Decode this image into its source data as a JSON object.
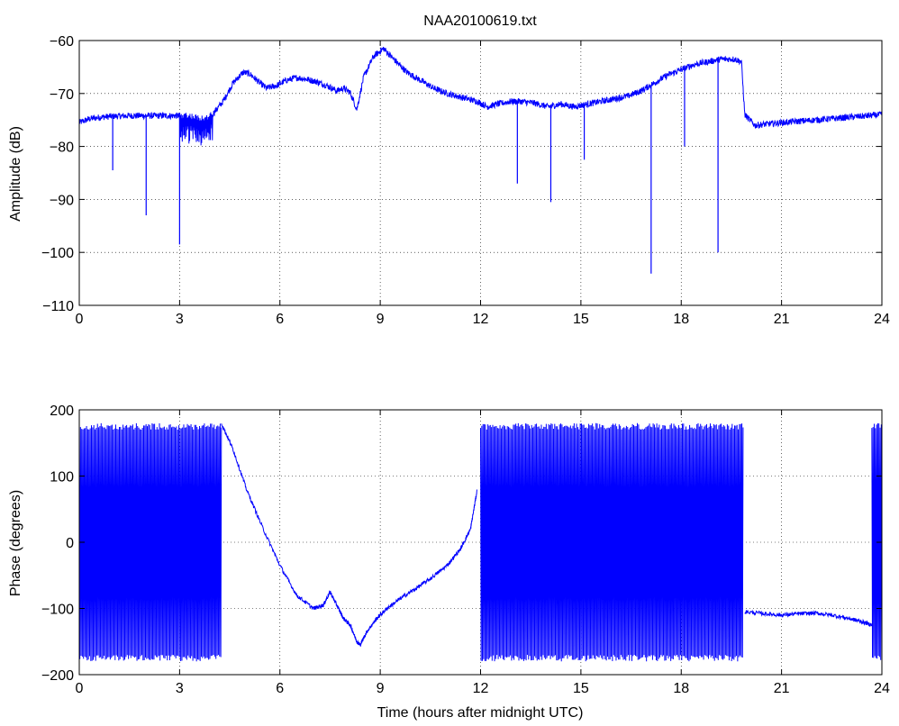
{
  "chart_data": [
    {
      "type": "line",
      "title": "NAA20100619.txt",
      "xlabel": "",
      "ylabel": "Amplitude (dB)",
      "xlim": [
        0,
        24
      ],
      "ylim": [
        -110,
        -60
      ],
      "xticks": [
        0,
        3,
        6,
        9,
        12,
        15,
        18,
        21,
        24
      ],
      "yticks": [
        -60,
        -70,
        -80,
        -90,
        -100,
        -110
      ],
      "xtick_labels": [
        "0",
        "3",
        "6",
        "9",
        "12",
        "15",
        "18",
        "21",
        "24"
      ],
      "ytick_labels": [
        "−60",
        "−70",
        "−80",
        "−90",
        "−100",
        "−110"
      ],
      "grid": true,
      "line_color": "#0000ff",
      "series": [
        {
          "x": [
            0,
            0.3,
            0.6,
            1.0,
            1.5,
            2.0,
            2.5,
            3.0,
            3.2,
            3.5,
            3.8,
            4.0,
            4.3,
            4.6,
            4.9,
            5.1,
            5.4,
            5.6,
            5.9,
            6.2,
            6.5,
            6.8,
            7.1,
            7.4,
            7.7,
            7.9,
            8.1,
            8.3,
            8.5,
            8.8,
            9.1,
            9.4,
            9.8,
            10.2,
            10.6,
            11.0,
            11.3,
            11.6,
            11.9,
            12.2,
            12.5,
            12.9,
            13.2,
            13.6,
            14.0,
            14.4,
            14.8,
            15.2,
            15.6,
            16.0,
            16.4,
            16.8,
            17.2,
            17.6,
            18.0,
            18.4,
            18.8,
            19.2,
            19.6,
            19.8,
            19.9,
            20.2,
            21.0,
            22.0,
            23.0,
            24.0
          ],
          "y": [
            -75.5,
            -74.8,
            -74.5,
            -74.3,
            -74.2,
            -74.2,
            -74.2,
            -74.2,
            -74.0,
            -74.5,
            -74.6,
            -73.8,
            -71.5,
            -68.0,
            -66.0,
            -66.3,
            -68.0,
            -69.0,
            -68.5,
            -67.5,
            -67.0,
            -67.3,
            -67.8,
            -68.5,
            -69.5,
            -69.0,
            -69.8,
            -73.0,
            -67.0,
            -63.0,
            -61.5,
            -63.5,
            -66.0,
            -67.5,
            -69.0,
            -70.0,
            -70.5,
            -71.0,
            -71.5,
            -72.5,
            -72.0,
            -71.5,
            -71.5,
            -71.8,
            -72.5,
            -72.0,
            -72.5,
            -72.0,
            -71.5,
            -71.0,
            -70.5,
            -69.5,
            -68.0,
            -66.5,
            -65.5,
            -64.5,
            -64.0,
            -63.5,
            -63.5,
            -64.0,
            -74.0,
            -76.0,
            -75.5,
            -75.0,
            -74.5,
            -74.0
          ]
        }
      ],
      "spikes": [
        {
          "x": 1.0,
          "y": -84.5
        },
        {
          "x": 2.0,
          "y": -93.0
        },
        {
          "x": 3.0,
          "y": -98.5
        },
        {
          "x": 13.1,
          "y": -87.0
        },
        {
          "x": 14.1,
          "y": -90.5
        },
        {
          "x": 15.1,
          "y": -82.5
        },
        {
          "x": 17.1,
          "y": -104.0
        },
        {
          "x": 18.1,
          "y": -80.0
        },
        {
          "x": 19.1,
          "y": -100.0
        }
      ]
    },
    {
      "type": "line",
      "title": "",
      "xlabel": "Time (hours after midnight UTC)",
      "ylabel": "Phase (degrees)",
      "xlim": [
        0,
        24
      ],
      "ylim": [
        -200,
        200
      ],
      "xticks": [
        0,
        3,
        6,
        9,
        12,
        15,
        18,
        21,
        24
      ],
      "yticks": [
        200,
        100,
        0,
        -100,
        -200
      ],
      "xtick_labels": [
        "0",
        "3",
        "6",
        "9",
        "12",
        "15",
        "18",
        "21",
        "24"
      ],
      "ytick_labels": [
        "200",
        "100",
        "0",
        "−100",
        "−200"
      ],
      "grid": true,
      "line_color": "#0000ff",
      "series": [
        {
          "x": [
            4.25,
            4.6,
            5.0,
            5.5,
            6.0,
            6.5,
            7.0,
            7.3,
            7.5,
            7.7,
            7.9,
            8.1,
            8.3,
            8.4,
            8.6,
            8.9,
            9.2,
            9.6,
            10.0,
            10.5,
            11.0,
            11.4,
            11.7,
            11.9
          ],
          "y": [
            180,
            140,
            80,
            20,
            -35,
            -80,
            -100,
            -95,
            -75,
            -95,
            -115,
            -125,
            -150,
            -155,
            -135,
            -115,
            -100,
            -85,
            -72,
            -55,
            -35,
            -10,
            20,
            80
          ]
        },
        {
          "x": [
            19.9,
            20.5,
            21.0,
            21.5,
            22.0,
            22.5,
            23.0,
            23.4,
            23.7
          ],
          "y": [
            -105,
            -108,
            -110,
            -108,
            -107,
            -110,
            -115,
            -120,
            -125
          ]
        }
      ],
      "oscillation_segments": [
        {
          "x": [
            0.0,
            4.25
          ],
          "y": [
            -180,
            180
          ]
        },
        {
          "x": [
            12.0,
            19.85
          ],
          "y": [
            -180,
            180
          ]
        },
        {
          "x": [
            23.7,
            24.0
          ],
          "y": [
            -180,
            180
          ]
        }
      ]
    }
  ]
}
